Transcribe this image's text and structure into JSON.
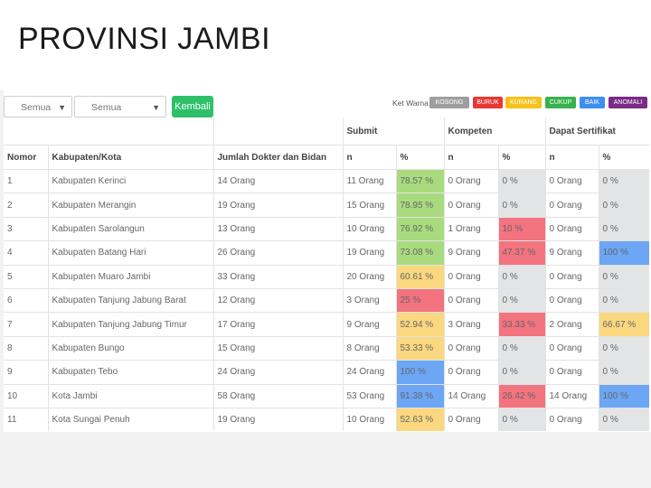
{
  "title": "PROVINSI JAMBI",
  "filters": {
    "first": "Semua",
    "second": "Semua"
  },
  "back_button": "Kembali",
  "legend_label": "Ket Warna :",
  "legend": [
    {
      "label": "KOSONG",
      "color": "#9e9e9e"
    },
    {
      "label": "BURUK",
      "color": "#e53935"
    },
    {
      "label": "KURANG",
      "color": "#f6c21c"
    },
    {
      "label": "CUKUP",
      "color": "#37b24d"
    },
    {
      "label": "BAIK",
      "color": "#3d8ef0"
    },
    {
      "label": "ANOMALI",
      "color": "#7b2a86"
    }
  ],
  "colors": {
    "green": "#a9db7e",
    "yellow": "#fbd87f",
    "red": "#f3737f",
    "blue": "#6ca6f5",
    "gray": "#e3e4e6"
  },
  "headers": {
    "group_submit": "Submit",
    "group_kompeten": "Kompeten",
    "group_sertifikat": "Dapat Sertifikat",
    "nomor": "Nomor",
    "kabupaten": "Kabupaten/Kota",
    "jumlah": "Jumlah Dokter dan Bidan",
    "n": "n",
    "pct": "%"
  },
  "rows": [
    {
      "no": "1",
      "name": "Kabupaten Kerinci",
      "jumlah": "14 Orang",
      "submit_n": "11 Orang",
      "submit_pct": "78.57 %",
      "submit_c": "green",
      "komp_n": "0 Orang",
      "komp_pct": "0 %",
      "komp_c": "gray",
      "sert_n": "0 Orang",
      "sert_pct": "0 %",
      "sert_c": "gray"
    },
    {
      "no": "2",
      "name": "Kabupaten Merangin",
      "jumlah": "19 Orang",
      "submit_n": "15 Orang",
      "submit_pct": "78.95 %",
      "submit_c": "green",
      "komp_n": "0 Orang",
      "komp_pct": "0 %",
      "komp_c": "gray",
      "sert_n": "0 Orang",
      "sert_pct": "0 %",
      "sert_c": "gray"
    },
    {
      "no": "3",
      "name": "Kabupaten Sarolangun",
      "jumlah": "13 Orang",
      "submit_n": "10 Orang",
      "submit_pct": "76.92 %",
      "submit_c": "green",
      "komp_n": "1 Orang",
      "komp_pct": "10 %",
      "komp_c": "red",
      "sert_n": "0 Orang",
      "sert_pct": "0 %",
      "sert_c": "gray"
    },
    {
      "no": "4",
      "name": "Kabupaten Batang Hari",
      "jumlah": "26 Orang",
      "submit_n": "19 Orang",
      "submit_pct": "73.08 %",
      "submit_c": "green",
      "komp_n": "9 Orang",
      "komp_pct": "47.37 %",
      "komp_c": "red",
      "sert_n": "9 Orang",
      "sert_pct": "100 %",
      "sert_c": "blue"
    },
    {
      "no": "5",
      "name": "Kabupaten Muaro Jambi",
      "jumlah": "33 Orang",
      "submit_n": "20 Orang",
      "submit_pct": "60.61 %",
      "submit_c": "yellow",
      "komp_n": "0 Orang",
      "komp_pct": "0 %",
      "komp_c": "gray",
      "sert_n": "0 Orang",
      "sert_pct": "0 %",
      "sert_c": "gray"
    },
    {
      "no": "6",
      "name": "Kabupaten Tanjung Jabung Barat",
      "jumlah": "12 Orang",
      "submit_n": "3 Orang",
      "submit_pct": "25 %",
      "submit_c": "red",
      "komp_n": "0 Orang",
      "komp_pct": "0 %",
      "komp_c": "gray",
      "sert_n": "0 Orang",
      "sert_pct": "0 %",
      "sert_c": "gray"
    },
    {
      "no": "7",
      "name": "Kabupaten Tanjung Jabung Timur",
      "jumlah": "17 Orang",
      "submit_n": "9 Orang",
      "submit_pct": "52.94 %",
      "submit_c": "yellow",
      "komp_n": "3 Orang",
      "komp_pct": "33.33 %",
      "komp_c": "red",
      "sert_n": "2 Orang",
      "sert_pct": "66.67 %",
      "sert_c": "yellow"
    },
    {
      "no": "8",
      "name": "Kabupaten Bungo",
      "jumlah": "15 Orang",
      "submit_n": "8 Orang",
      "submit_pct": "53.33 %",
      "submit_c": "yellow",
      "komp_n": "0 Orang",
      "komp_pct": "0 %",
      "komp_c": "gray",
      "sert_n": "0 Orang",
      "sert_pct": "0 %",
      "sert_c": "gray"
    },
    {
      "no": "9",
      "name": "Kabupaten Tebo",
      "jumlah": "24 Orang",
      "submit_n": "24 Orang",
      "submit_pct": "100 %",
      "submit_c": "blue",
      "komp_n": "0 Orang",
      "komp_pct": "0 %",
      "komp_c": "gray",
      "sert_n": "0 Orang",
      "sert_pct": "0 %",
      "sert_c": "gray"
    },
    {
      "no": "10",
      "name": "Kota Jambi",
      "jumlah": "58 Orang",
      "submit_n": "53 Orang",
      "submit_pct": "91.38 %",
      "submit_c": "blue",
      "komp_n": "14 Orang",
      "komp_pct": "26.42 %",
      "komp_c": "red",
      "sert_n": "14 Orang",
      "sert_pct": "100 %",
      "sert_c": "blue"
    },
    {
      "no": "11",
      "name": "Kota Sungai Penuh",
      "jumlah": "19 Orang",
      "submit_n": "10 Orang",
      "submit_pct": "52.63 %",
      "submit_c": "yellow",
      "komp_n": "0 Orang",
      "komp_pct": "0 %",
      "komp_c": "gray",
      "sert_n": "0 Orang",
      "sert_pct": "0 %",
      "sert_c": "gray"
    }
  ]
}
